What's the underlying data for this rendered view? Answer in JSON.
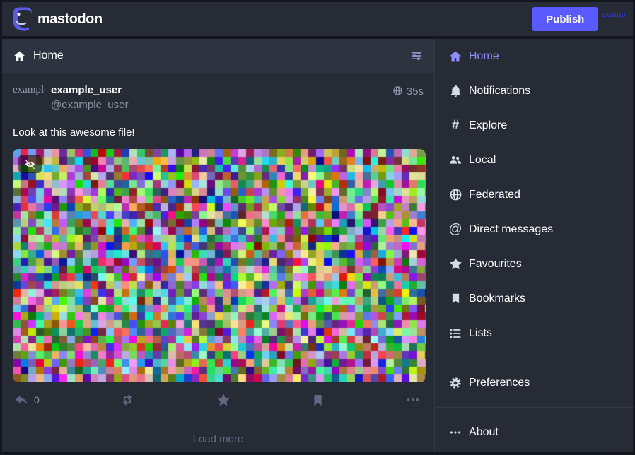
{
  "topbar": {
    "logo_text": "mastodon",
    "publish_label": "Publish",
    "overflow_link": "examp"
  },
  "column": {
    "header": {
      "title": "Home"
    },
    "status": {
      "avatar_alt": "example",
      "display_name": "example_user",
      "handle": "@example_user",
      "timestamp": "35s",
      "content": "Look at this awesome file!",
      "reply_count": "0",
      "media": {
        "type": "image",
        "description": "random colored pixel noise"
      }
    },
    "load_more": "Load more"
  },
  "sidebar": {
    "items": [
      {
        "label": "Home",
        "icon": "home-icon",
        "active": true
      },
      {
        "label": "Notifications",
        "icon": "bell-icon",
        "active": false
      },
      {
        "label": "Explore",
        "icon": "hashtag-icon",
        "glyph": "#",
        "active": false
      },
      {
        "label": "Local",
        "icon": "users-icon",
        "active": false
      },
      {
        "label": "Federated",
        "icon": "globe-icon",
        "active": false
      },
      {
        "label": "Direct messages",
        "icon": "at-icon",
        "glyph": "@",
        "active": false
      },
      {
        "label": "Favourites",
        "icon": "star-icon",
        "active": false
      },
      {
        "label": "Bookmarks",
        "icon": "bookmark-icon",
        "active": false
      },
      {
        "label": "Lists",
        "icon": "list-icon",
        "active": false
      }
    ],
    "footer_items": [
      {
        "label": "Preferences",
        "icon": "gear-icon"
      },
      {
        "label": "About",
        "icon": "ellipsis-icon"
      }
    ]
  },
  "colors": {
    "accent": "#595aff",
    "active_link": "#8c8dff",
    "muted_icon": "#606984",
    "text_muted": "#8d95a7",
    "column_background": "#262b35",
    "header_background": "#2e3340",
    "page_edge": "#14171e"
  }
}
